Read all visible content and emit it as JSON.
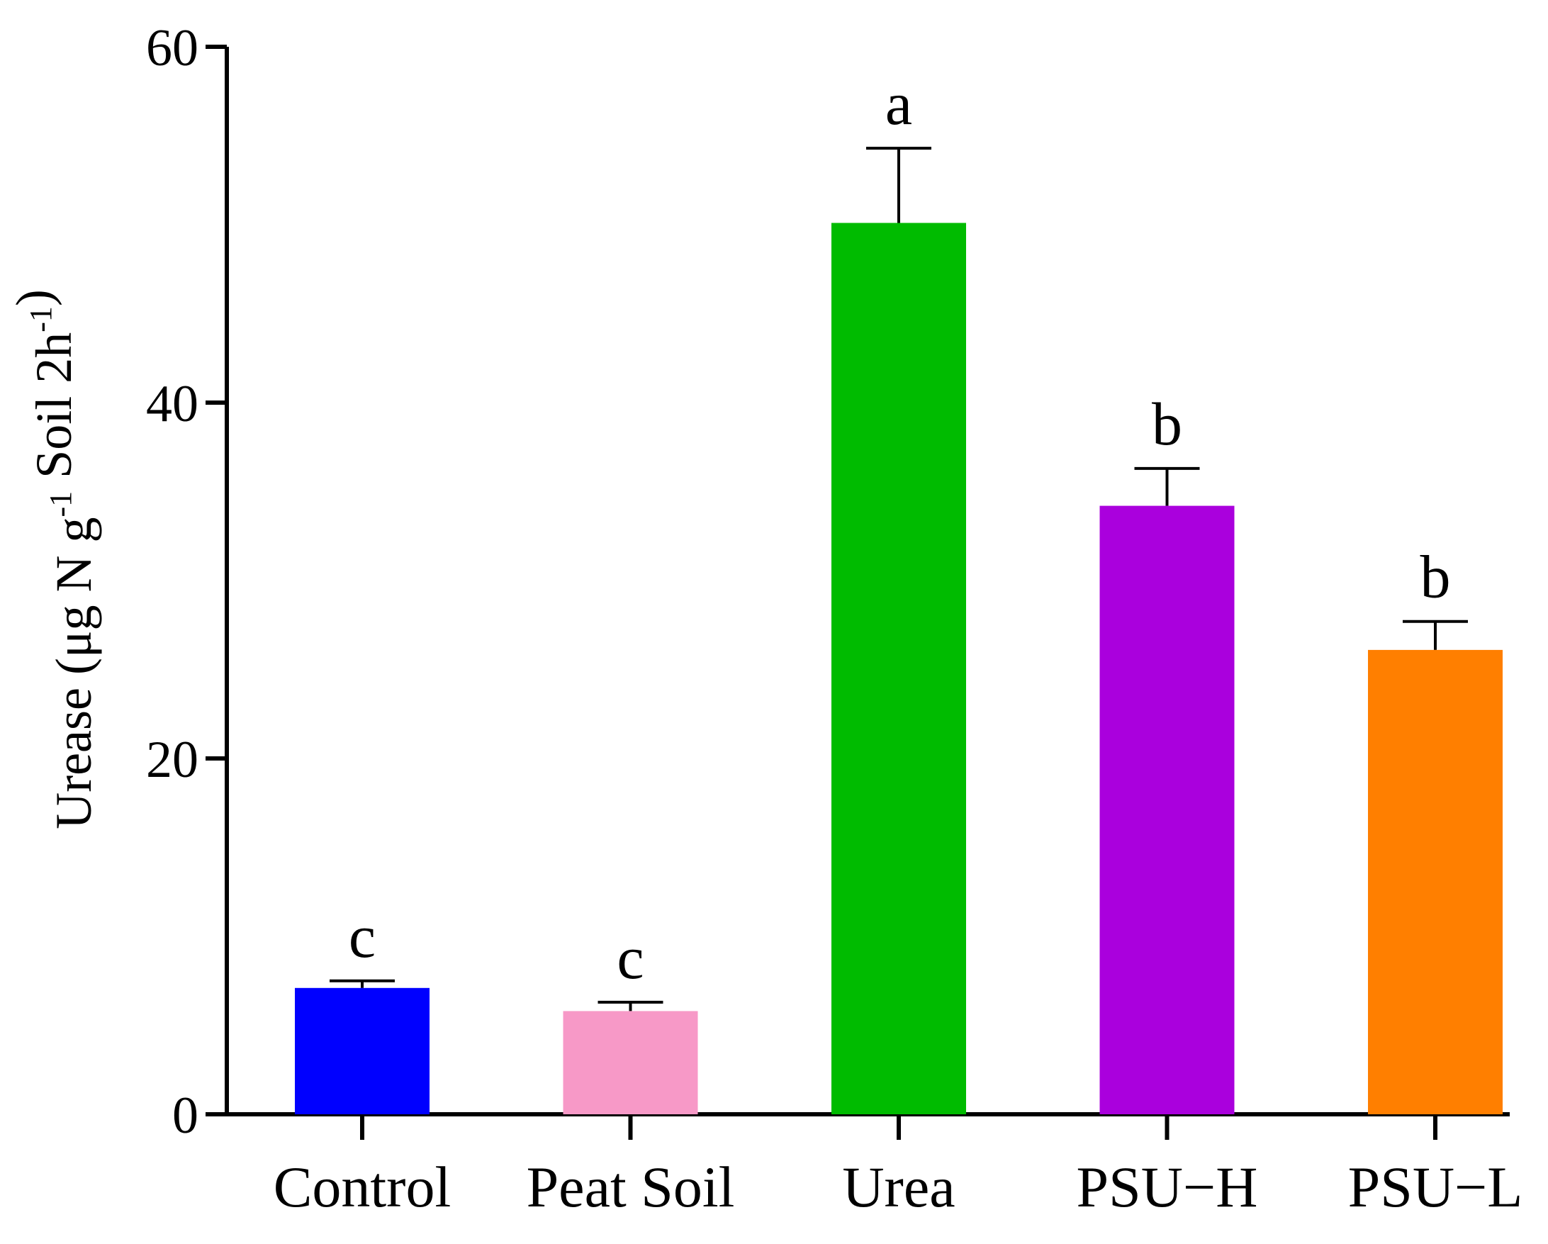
{
  "chart_data": {
    "type": "bar",
    "title": "",
    "xlabel": "",
    "ylabel": {
      "parts": [
        {
          "text": "Urease (μg N g",
          "sup": false
        },
        {
          "text": "-1",
          "sup": true
        },
        {
          "text": " Soil 2h",
          "sup": false
        },
        {
          "text": "-1",
          "sup": true
        },
        {
          "text": ")",
          "sup": false
        }
      ]
    },
    "categories": [
      "Control",
      "Peat Soil",
      "Urea",
      "PSU−H",
      "PSU−L"
    ],
    "values": [
      7.1,
      5.8,
      50.1,
      34.2,
      26.1
    ],
    "errors": [
      0.4,
      0.5,
      4.2,
      2.1,
      1.6
    ],
    "significance_letters": [
      "c",
      "c",
      "a",
      "b",
      "b"
    ],
    "colors": [
      "#0000ff",
      "#f799c7",
      "#00bb00",
      "#aa00dd",
      "#ff7f00"
    ],
    "ylim": [
      0,
      60
    ],
    "yticks": [
      0,
      20,
      40,
      60
    ],
    "grid": false,
    "legend": "none"
  }
}
